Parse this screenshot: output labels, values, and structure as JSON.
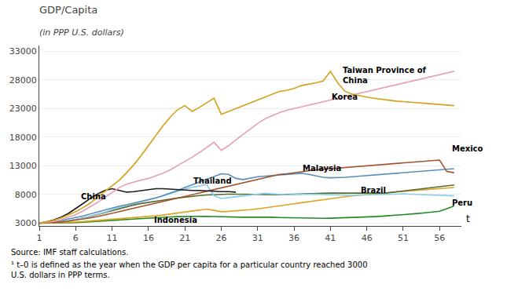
{
  "chart_data": {
    "type": "line",
    "title": "GDP/Capita",
    "subtitle": "(in PPP U.S. dollars)",
    "xlabel": "t",
    "source": "Source: IMF staff calculations.",
    "footnote": "¹ t–0 is defined as the year when the GDP per capita for a particular country reached 3000\nU.S. dollars in PPP terms.",
    "xlim": [
      1,
      59
    ],
    "xticks": [
      1,
      6,
      11,
      16,
      21,
      26,
      31,
      36,
      41,
      46,
      51,
      56
    ],
    "ylim": [
      2500,
      34000
    ],
    "yticks": [
      3000,
      8000,
      13000,
      18000,
      23000,
      28000,
      33000
    ],
    "grid": "y",
    "x": [
      1,
      2,
      3,
      4,
      5,
      6,
      7,
      8,
      9,
      10,
      11,
      12,
      13,
      14,
      15,
      16,
      17,
      18,
      19,
      20,
      21,
      22,
      23,
      24,
      25,
      26,
      27,
      28,
      29,
      30,
      31,
      32,
      33,
      34,
      35,
      36,
      37,
      38,
      39,
      40,
      41,
      42,
      43,
      44,
      45,
      46,
      47,
      48,
      49,
      50,
      51,
      52,
      53,
      54,
      55,
      56,
      57,
      58
    ],
    "series": [
      {
        "name": "Peru",
        "color": "#228B22",
        "values": [
          3000,
          3000,
          3010,
          3030,
          3060,
          3100,
          3150,
          3210,
          3280,
          3360,
          3450,
          3540,
          3630,
          3720,
          3810,
          3890,
          3960,
          4020,
          4080,
          4120,
          4150,
          4170,
          4180,
          4180,
          4150,
          4100,
          4060,
          4030,
          4020,
          4030,
          4050,
          4050,
          4020,
          3980,
          3940,
          3900,
          3860,
          3830,
          3820,
          3830,
          3850,
          3880,
          3910,
          3950,
          4000,
          4060,
          4120,
          4190,
          4270,
          4360,
          4460,
          4560,
          4670,
          4790,
          4920,
          5060,
          5500,
          6000
        ]
      },
      {
        "name": "Indonesia",
        "color": "#DAA520",
        "values": [
          3000,
          3020,
          3050,
          3090,
          3140,
          3200,
          3270,
          3360,
          3460,
          3570,
          3680,
          3790,
          3890,
          3980,
          4060,
          4150,
          4260,
          4400,
          4560,
          4740,
          4930,
          5110,
          5280,
          5450,
          5220,
          4980,
          5050,
          5130,
          5230,
          5350,
          5490,
          5650,
          5820,
          6000,
          6180,
          6370,
          6560,
          6750,
          6940,
          7120,
          7290,
          7450,
          7600,
          7740,
          7870,
          7990,
          8100,
          8210,
          8320,
          8430,
          8540,
          8640,
          8740,
          8840,
          8940,
          9040,
          9130,
          9220
        ]
      },
      {
        "name": "Brazil",
        "color": "#556B2F",
        "values": [
          3000,
          3050,
          3120,
          3230,
          3390,
          3600,
          3860,
          4160,
          4500,
          4870,
          5250,
          5600,
          5920,
          6180,
          6420,
          6640,
          6840,
          7020,
          7200,
          7380,
          7540,
          7680,
          7800,
          7900,
          7980,
          8020,
          8040,
          8040,
          8020,
          7990,
          7960,
          7940,
          7940,
          7960,
          8000,
          8060,
          8120,
          8180,
          8200,
          8220,
          8240,
          8250,
          8260,
          8280,
          8300,
          8250,
          8200,
          8150,
          8300,
          8450,
          8600,
          8750,
          8900,
          9050,
          9200,
          9350,
          9500,
          9650
        ]
      },
      {
        "name": "Thailand",
        "color": "#87CEEB",
        "values": [
          3000,
          3050,
          3130,
          3250,
          3420,
          3620,
          3870,
          4170,
          4520,
          4910,
          5330,
          5750,
          6120,
          6430,
          6720,
          7020,
          7360,
          7750,
          8150,
          8560,
          8940,
          9250,
          9520,
          9720,
          7800,
          7300,
          7450,
          7600,
          7750,
          7900,
          8050,
          8200,
          8100,
          8000,
          7950,
          8000,
          8050,
          8100,
          8050,
          8000,
          7950,
          7900,
          7850,
          7850,
          7900,
          7950,
          8000,
          8050,
          8100,
          8100,
          8100,
          8050,
          8000,
          7950,
          7900,
          7850,
          7800,
          7750
        ]
      },
      {
        "name": "Malaysia",
        "color": "#5B8DB8",
        "values": [
          3000,
          3100,
          3250,
          3450,
          3700,
          3950,
          4250,
          4600,
          4950,
          5300,
          5650,
          5950,
          6200,
          6500,
          6750,
          7050,
          7400,
          7800,
          8200,
          8700,
          9200,
          9700,
          10200,
          10700,
          11200,
          11600,
          11500,
          10800,
          10600,
          10900,
          11100,
          11200,
          11300,
          11400,
          11500,
          11600,
          11700,
          11500,
          11200,
          11000,
          10900,
          10900,
          11000,
          11100,
          11200,
          11300,
          11400,
          11500,
          11600,
          11700,
          11800,
          11900,
          12000,
          12100,
          12200,
          12300,
          12400,
          12500
        ]
      },
      {
        "name": "Mexico",
        "color": "#A0522D",
        "values": [
          3000,
          3050,
          3100,
          3200,
          3350,
          3500,
          3700,
          3900,
          4150,
          4400,
          4700,
          5000,
          5300,
          5600,
          5900,
          6200,
          6500,
          6800,
          7100,
          7400,
          7700,
          8000,
          8300,
          8600,
          8900,
          9200,
          9500,
          9800,
          10100,
          10400,
          10700,
          11000,
          11300,
          11500,
          11600,
          11800,
          12000,
          12200,
          12300,
          12400,
          12500,
          12600,
          12700,
          12800,
          12900,
          13000,
          13100,
          13200,
          13300,
          13400,
          13500,
          13600,
          13700,
          13800,
          13900,
          14000,
          12000,
          11800
        ]
      },
      {
        "name": "China",
        "color": "#1a1a1a",
        "values": [
          3000,
          3200,
          3550,
          4050,
          4700,
          5500,
          6400,
          7300,
          8100,
          8700,
          9000,
          8700,
          8400,
          8500,
          8700,
          8900,
          9000,
          9000,
          8900,
          8800,
          8800,
          8700,
          8700,
          8600,
          8600,
          8500,
          8500,
          8400,
          null,
          null,
          null,
          null,
          null,
          null,
          null,
          null,
          null,
          null,
          null,
          null,
          null,
          null,
          null,
          null,
          null,
          null,
          null,
          null,
          null,
          null,
          null,
          null,
          null,
          null,
          null,
          null,
          null,
          null
        ]
      },
      {
        "name": "Korea",
        "color": "#E8A0B0",
        "values": [
          3000,
          3100,
          3300,
          3600,
          4000,
          4500,
          5100,
          5800,
          6600,
          7500,
          8400,
          9200,
          9800,
          10200,
          10500,
          10800,
          11200,
          11700,
          12300,
          13000,
          13700,
          14500,
          15300,
          16200,
          17100,
          15700,
          16500,
          17500,
          18500,
          19500,
          20400,
          21200,
          21800,
          22300,
          22700,
          23000,
          23300,
          23600,
          23900,
          24200,
          24500,
          24700,
          25000,
          25300,
          25600,
          25900,
          26200,
          26500,
          26800,
          27100,
          27400,
          27700,
          28000,
          28300,
          28600,
          28900,
          29200,
          29500
        ]
      },
      {
        "name": "Taiwan Province of China",
        "color": "#D4A017",
        "values": [
          3000,
          3200,
          3500,
          3900,
          4400,
          5000,
          5700,
          6500,
          7500,
          8500,
          9500,
          10500,
          11800,
          13200,
          14800,
          16500,
          18200,
          20000,
          21500,
          22800,
          23500,
          22500,
          23200,
          24000,
          24800,
          22000,
          22500,
          23000,
          23500,
          24000,
          24500,
          25000,
          25500,
          26000,
          26200,
          26500,
          27000,
          27200,
          27500,
          27800,
          29500,
          27500,
          26000,
          25500,
          25200,
          25000,
          24800,
          24600,
          24500,
          24300,
          24200,
          24100,
          24000,
          23900,
          23800,
          23700,
          23600,
          23500
        ]
      }
    ],
    "annotations": [
      {
        "text": "Taiwan Province of\nChina",
        "x": 42.5,
        "y": 28800
      },
      {
        "text": "Korea",
        "x": 41,
        "y": 25000
      },
      {
        "text": "Malaysia",
        "x": 37,
        "y": 12500
      },
      {
        "text": "Mexico",
        "x": 57.5,
        "y": 16000
      },
      {
        "text": "Thailand",
        "x": 22,
        "y": 10400
      },
      {
        "text": "China",
        "x": 6.5,
        "y": 7700
      },
      {
        "text": "Brazil",
        "x": 45,
        "y": 8700
      },
      {
        "text": "Indonesia",
        "x": 16.5,
        "y": 3500
      },
      {
        "text": "Peru",
        "x": 57.5,
        "y": 6500
      }
    ]
  }
}
